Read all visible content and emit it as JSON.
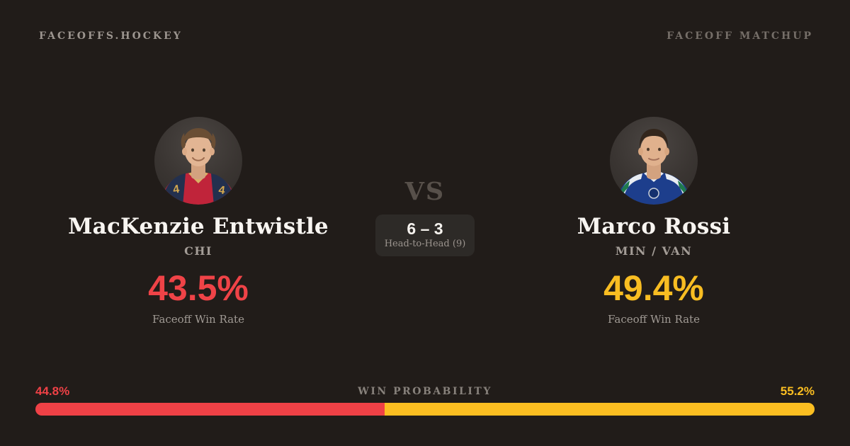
{
  "header": {
    "brand": "FACEOFFS.HOCKEY",
    "label": "FACEOFF MATCHUP"
  },
  "players": {
    "left": {
      "name": "MacKenzie Entwistle",
      "team": "CHI",
      "win_rate": "43.5%",
      "win_rate_label": "Faceoff Win Rate",
      "accent": "#ef4347",
      "avatar_description": "player-photo-red-jersey"
    },
    "right": {
      "name": "Marco Rossi",
      "team": "MIN / VAN",
      "win_rate": "49.4%",
      "win_rate_label": "Faceoff Win Rate",
      "accent": "#f8bd22",
      "avatar_description": "player-photo-blue-jersey"
    }
  },
  "versus": {
    "label": "VS",
    "score": "6 – 3",
    "sublabel": "Head-to-Head (9)"
  },
  "win_probability": {
    "label": "WIN PROBABILITY",
    "left_pct": "44.8%",
    "right_pct": "55.2%",
    "left_value": 44.8,
    "right_value": 55.2,
    "left_color": "#ef4146",
    "right_color": "#fbbe21"
  },
  "colors": {
    "background": "#211c19",
    "panel": "#2d2a27",
    "text_primary": "#f8f5f1",
    "text_muted": "#a09a94"
  }
}
